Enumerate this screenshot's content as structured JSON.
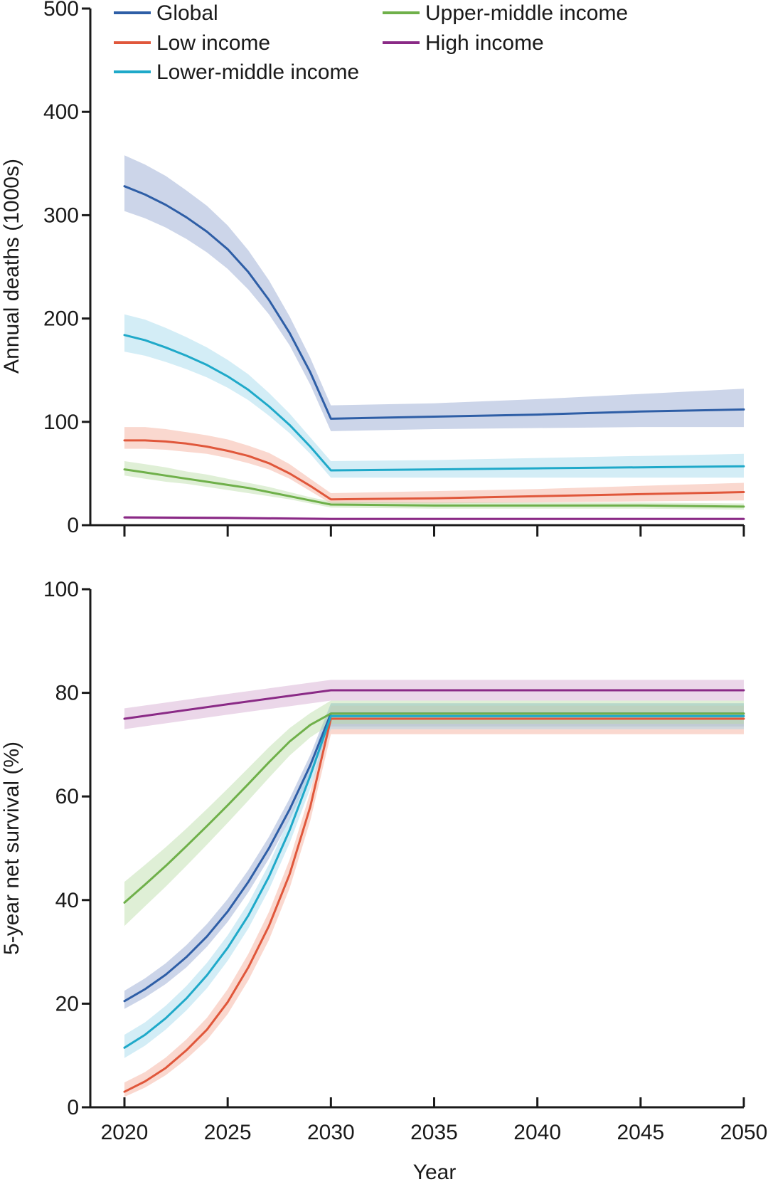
{
  "chart_data": [
    {
      "type": "line",
      "panel": "top",
      "title": "",
      "xlabel": "",
      "ylabel": "Annual deaths (1000s)",
      "xlim": [
        2020,
        2050
      ],
      "ylim": [
        0,
        500
      ],
      "xticks": [
        2020,
        2025,
        2030,
        2035,
        2040,
        2045,
        2050
      ],
      "xtick_labels_shown": false,
      "yticks": [
        0,
        100,
        200,
        300,
        400,
        500
      ],
      "ytick_labels": [
        "0",
        "100",
        "200",
        "300",
        "400",
        "500"
      ],
      "legend": {
        "placement": "top-left, two columns"
      },
      "series": [
        {
          "name": "Global",
          "key": "global",
          "color": "#2e5ea6",
          "band_color": "#8fa2cf",
          "x": [
            2020,
            2021,
            2022,
            2023,
            2024,
            2025,
            2026,
            2027,
            2028,
            2029,
            2030,
            2035,
            2040,
            2045,
            2050
          ],
          "values": [
            328,
            320,
            310,
            298,
            284,
            267,
            245,
            218,
            186,
            148,
            103,
            105,
            107,
            110,
            112
          ],
          "lower": [
            304,
            297,
            288,
            277,
            264,
            248,
            228,
            204,
            174,
            136,
            91,
            93,
            94,
            95,
            95
          ],
          "upper": [
            358,
            349,
            338,
            324,
            309,
            290,
            266,
            237,
            202,
            162,
            116,
            118,
            122,
            127,
            132
          ]
        },
        {
          "name": "Low income",
          "key": "low",
          "color": "#e0573b",
          "band_color": "#f3a994",
          "x": [
            2020,
            2021,
            2022,
            2023,
            2024,
            2025,
            2026,
            2027,
            2028,
            2029,
            2030,
            2035,
            2040,
            2045,
            2050
          ],
          "values": [
            82,
            82,
            81,
            79,
            76,
            72,
            67,
            60,
            50,
            38,
            25,
            26,
            28,
            30,
            32
          ],
          "lower": [
            74,
            74,
            73,
            71,
            69,
            65,
            60,
            54,
            45,
            33,
            21,
            21,
            22,
            23,
            24
          ],
          "upper": [
            95,
            95,
            93,
            90,
            87,
            83,
            77,
            70,
            59,
            45,
            31,
            33,
            35,
            38,
            41
          ]
        },
        {
          "name": "Lower-middle income",
          "key": "lowermid",
          "color": "#1fa9c9",
          "band_color": "#9ed6ea",
          "x": [
            2020,
            2021,
            2022,
            2023,
            2024,
            2025,
            2026,
            2027,
            2028,
            2029,
            2030,
            2035,
            2040,
            2045,
            2050
          ],
          "values": [
            184,
            179,
            172,
            164,
            155,
            144,
            131,
            115,
            97,
            76,
            53,
            54,
            55,
            56,
            57
          ],
          "lower": [
            168,
            164,
            158,
            151,
            143,
            133,
            121,
            106,
            89,
            69,
            46,
            46,
            46,
            46,
            46
          ],
          "upper": [
            204,
            199,
            191,
            182,
            172,
            160,
            146,
            128,
            108,
            85,
            62,
            63,
            65,
            67,
            69
          ]
        },
        {
          "name": "Upper-middle income",
          "key": "uppermid",
          "color": "#6fb04a",
          "band_color": "#b9dba5",
          "x": [
            2020,
            2021,
            2022,
            2023,
            2024,
            2025,
            2026,
            2027,
            2028,
            2029,
            2030,
            2035,
            2040,
            2045,
            2050
          ],
          "values": [
            54,
            51,
            48,
            45,
            42,
            39,
            36,
            32,
            28,
            24,
            20,
            19,
            19,
            19,
            18
          ],
          "lower": [
            48,
            45,
            42,
            40,
            37,
            34,
            31,
            28,
            25,
            21,
            17,
            16,
            16,
            16,
            15
          ],
          "upper": [
            62,
            59,
            56,
            52,
            49,
            45,
            41,
            37,
            32,
            27,
            23,
            22,
            22,
            22,
            21
          ]
        },
        {
          "name": "High income",
          "key": "high",
          "color": "#8a2a86",
          "band_color": "#d2a6cf",
          "x": [
            2020,
            2025,
            2030,
            2035,
            2040,
            2045,
            2050
          ],
          "values": [
            7.5,
            7,
            6,
            6,
            6,
            6,
            6
          ],
          "lower": [
            6,
            5.5,
            4.8,
            4.8,
            4.8,
            4.8,
            4.8
          ],
          "upper": [
            9,
            8.5,
            7.4,
            7.4,
            7.4,
            7.4,
            7.4
          ]
        }
      ]
    },
    {
      "type": "line",
      "panel": "bottom",
      "title": "",
      "xlabel": "Year",
      "ylabel": "5-year net survival (%)",
      "xlim": [
        2020,
        2050
      ],
      "ylim": [
        0,
        100
      ],
      "xticks": [
        2020,
        2025,
        2030,
        2035,
        2040,
        2045,
        2050
      ],
      "xtick_labels": [
        "2020",
        "2025",
        "2030",
        "2035",
        "2040",
        "2045",
        "2050"
      ],
      "yticks": [
        0,
        20,
        40,
        60,
        80,
        100
      ],
      "ytick_labels": [
        "0",
        "20",
        "40",
        "60",
        "80",
        "100"
      ],
      "series": [
        {
          "name": "Global",
          "key": "global",
          "color": "#2e5ea6",
          "band_color": "#8fa2cf",
          "x": [
            2020,
            2021,
            2022,
            2023,
            2024,
            2025,
            2026,
            2027,
            2028,
            2029,
            2030,
            2035,
            2040,
            2045,
            2050
          ],
          "values": [
            20.5,
            22.8,
            25.6,
            29,
            33,
            37.8,
            43.5,
            50,
            57.5,
            66,
            76,
            76,
            76,
            76,
            76
          ],
          "lower": [
            19,
            21.2,
            23.8,
            27,
            31,
            35.8,
            41.5,
            48,
            55.5,
            64,
            73.5,
            73.5,
            73.5,
            73.5,
            73.5
          ],
          "upper": [
            22.5,
            24.9,
            27.8,
            31.3,
            35.4,
            40.2,
            45.8,
            52.2,
            59.6,
            68,
            78,
            78,
            78,
            78,
            78
          ]
        },
        {
          "name": "Low income",
          "key": "low",
          "color": "#e0573b",
          "band_color": "#f3a994",
          "x": [
            2020,
            2021,
            2022,
            2023,
            2024,
            2025,
            2026,
            2027,
            2028,
            2029,
            2030,
            2035,
            2040,
            2045,
            2050
          ],
          "values": [
            3,
            5,
            7.6,
            11,
            15,
            20.3,
            27,
            35,
            45,
            58,
            75,
            75,
            75,
            75,
            75
          ],
          "lower": [
            2,
            3.8,
            6.2,
            9.3,
            13,
            18,
            24.5,
            32.3,
            42.3,
            55.3,
            72,
            72,
            72,
            72,
            72
          ],
          "upper": [
            4.8,
            6.8,
            9.6,
            13.1,
            17.3,
            22.8,
            29.6,
            37.7,
            47.8,
            60.8,
            77.5,
            77.5,
            77.5,
            77.5,
            77.5
          ]
        },
        {
          "name": "Lower-middle income",
          "key": "lowermid",
          "color": "#1fa9c9",
          "band_color": "#9ed6ea",
          "x": [
            2020,
            2021,
            2022,
            2023,
            2024,
            2025,
            2026,
            2027,
            2028,
            2029,
            2030,
            2035,
            2040,
            2045,
            2050
          ],
          "values": [
            11.5,
            14,
            17.2,
            21,
            25.5,
            30.8,
            37,
            44.5,
            53.5,
            64,
            75.5,
            75.5,
            75.5,
            75.5,
            75.5
          ],
          "lower": [
            9.5,
            11.9,
            15,
            18.7,
            23,
            28.3,
            34.5,
            42,
            51,
            61.5,
            73,
            73,
            73,
            73,
            73
          ],
          "upper": [
            14,
            16.4,
            19.6,
            23.4,
            27.9,
            33.2,
            39.4,
            46.9,
            55.9,
            66.3,
            78,
            78,
            78,
            78,
            78
          ]
        },
        {
          "name": "Upper-middle income",
          "key": "uppermid",
          "color": "#6fb04a",
          "band_color": "#b9dba5",
          "x": [
            2020,
            2021,
            2022,
            2023,
            2024,
            2025,
            2026,
            2027,
            2028,
            2029,
            2030,
            2035,
            2040,
            2045,
            2050
          ],
          "values": [
            39.5,
            43,
            46.6,
            50.4,
            54.3,
            58.3,
            62.4,
            66.6,
            70.6,
            73.8,
            76,
            76,
            76,
            76,
            76
          ],
          "lower": [
            35,
            38.8,
            42.6,
            46.6,
            50.7,
            54.9,
            59.2,
            63.6,
            67.9,
            71.4,
            74,
            74,
            74,
            74,
            74
          ],
          "upper": [
            43.5,
            46.8,
            50.2,
            53.8,
            57.6,
            61.5,
            65.5,
            69.5,
            73.2,
            76.1,
            78.5,
            78.5,
            78.5,
            78.5,
            78.5
          ]
        },
        {
          "name": "High income",
          "key": "high",
          "color": "#8a2a86",
          "band_color": "#d2a6cf",
          "x": [
            2020,
            2025,
            2030,
            2035,
            2040,
            2045,
            2050
          ],
          "values": [
            75,
            77.8,
            80.5,
            80.5,
            80.5,
            80.5,
            80.5
          ],
          "lower": [
            73,
            75.8,
            78.5,
            78.5,
            78.5,
            78.5,
            78.5
          ],
          "upper": [
            77,
            79.8,
            82.5,
            82.5,
            82.5,
            82.5,
            82.5
          ]
        }
      ]
    }
  ]
}
